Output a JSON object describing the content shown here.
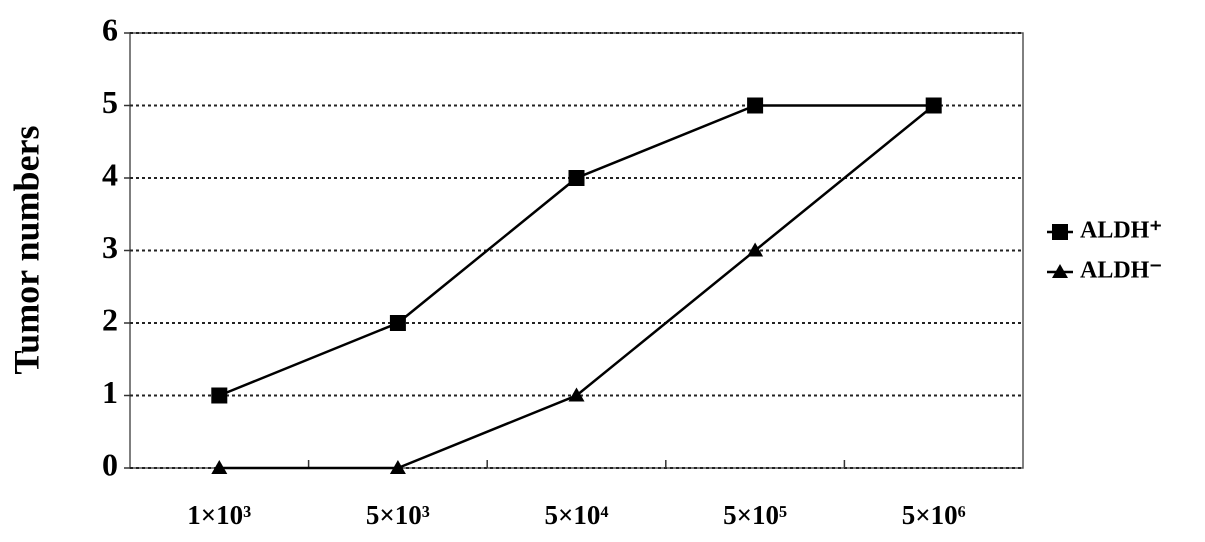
{
  "chart_data": {
    "type": "line",
    "y_label": "Tumor numbers",
    "categories": [
      "1×10³",
      "5×10³",
      "5×10⁴",
      "5×10⁵",
      "5×10⁶"
    ],
    "series": [
      {
        "name": "ALDH⁺",
        "color": "#000000",
        "marker": "square",
        "values": [
          1,
          2,
          4,
          5,
          5
        ]
      },
      {
        "name": "ALDH⁻",
        "color": "#000000",
        "marker": "triangle",
        "values": [
          0,
          0,
          1,
          3,
          5
        ]
      }
    ],
    "ylim": [
      0,
      6
    ],
    "yticks": [
      0,
      1,
      2,
      3,
      4,
      5,
      6
    ],
    "grid": true,
    "legend": "right"
  }
}
